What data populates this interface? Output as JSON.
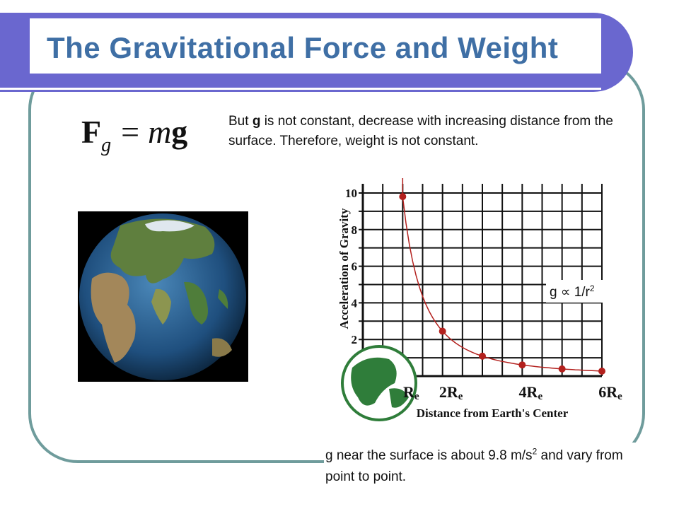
{
  "slide": {
    "title": "The Gravitational Force and Weight",
    "formula": {
      "lhs": "F",
      "subscript": "g",
      "equals": "=",
      "mass": "m",
      "g": "g"
    },
    "intro": {
      "part1": "But ",
      "bold": "g",
      "part2": " is not constant, decrease with increasing distance from the surface.   Therefore, weight is not constant."
    },
    "relation": {
      "prefix": "g ∝ 1/r",
      "exponent": "2"
    },
    "surface_note": {
      "part1": "g near the surface is about 9.8 m/s",
      "exponent": "2",
      "part2": " and vary from point to point."
    }
  },
  "chart_data": {
    "type": "line",
    "xlabel": "Distance from Earth's Center",
    "ylabel": "Acceleration of Gravity",
    "x_tick_labels": [
      {
        "value": 1,
        "main": "R",
        "sub": "e"
      },
      {
        "value": 2,
        "main": "2R",
        "sub": "e"
      },
      {
        "value": 4,
        "main": "4R",
        "sub": "e"
      },
      {
        "value": 6,
        "main": "6R",
        "sub": "e"
      }
    ],
    "y_ticks": [
      2,
      4,
      6,
      8,
      10
    ],
    "xlim": [
      0,
      6
    ],
    "ylim": [
      0,
      10.5
    ],
    "grid": true,
    "points": [
      {
        "x": 1,
        "y": 9.8
      },
      {
        "x": 2,
        "y": 2.45
      },
      {
        "x": 3,
        "y": 1.09
      },
      {
        "x": 4,
        "y": 0.61
      },
      {
        "x": 5,
        "y": 0.39
      },
      {
        "x": 6,
        "y": 0.27
      }
    ],
    "colors": {
      "curve": "#b3201d",
      "grid": "#111111",
      "earth": "#2f7d3a"
    }
  }
}
